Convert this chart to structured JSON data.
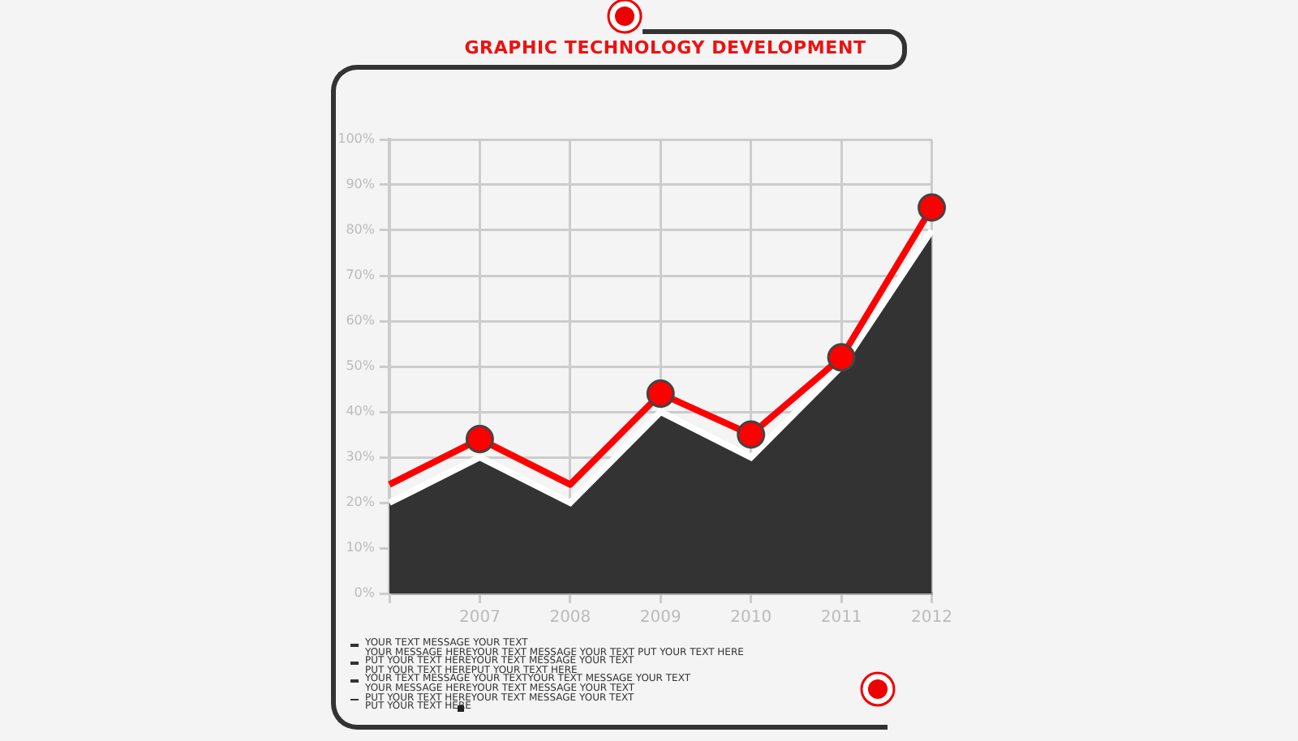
{
  "chart_data": {
    "type": "line",
    "title": "GRAPHIC TECHNOLOGY DEVELOPMENT",
    "categories": [
      null,
      "2007",
      "2008",
      "2009",
      "2010",
      "2011",
      "2012"
    ],
    "series": [
      {
        "type": "area",
        "color": "#333333",
        "values": [
          20,
          30,
          20,
          40,
          30,
          50,
          80
        ]
      },
      {
        "type": "line",
        "color": "#ff0000",
        "marker": "none",
        "values": [
          24,
          34,
          24,
          44,
          35,
          52,
          85
        ]
      },
      {
        "type": "scatter",
        "color": "#ff0000",
        "marker": "circle",
        "values": [
          null,
          34,
          null,
          44,
          35,
          52,
          85
        ]
      }
    ],
    "ylim": [
      0,
      100
    ],
    "yticks": [
      {
        "value": 0,
        "label": "0%"
      },
      {
        "value": 10,
        "label": "10%"
      },
      {
        "value": 20,
        "label": "20%"
      },
      {
        "value": 30,
        "label": "30%"
      },
      {
        "value": 40,
        "label": "40%"
      },
      {
        "value": 50,
        "label": "50%"
      },
      {
        "value": 60,
        "label": "60%"
      },
      {
        "value": 70,
        "label": "70%"
      },
      {
        "value": 80,
        "label": "80%"
      },
      {
        "value": 90,
        "label": "90%"
      },
      {
        "value": 100,
        "label": "100%"
      }
    ],
    "grid": true,
    "legend": false,
    "annotations": [
      "YOUR TEXT MESSAGE YOUR TEXT\nYOUR MESSAGE HEREYOUR TEXT MESSAGE YOUR TEXT PUT YOUR TEXT HERE",
      "PUT YOUR TEXT HEREYOUR TEXT MESSAGE YOUR TEXT\nPUT YOUR TEXT HEREPUT YOUR TEXT HERE",
      "YOUR TEXT MESSAGE YOUR TEXTYOUR TEXT MESSAGE YOUR TEXT\nYOUR MESSAGE HEREYOUR TEXT MESSAGE YOUR TEXT",
      "PUT YOUR TEXT HEREYOUR TEXT MESSAGE YOUR TEXT\nPUT YOUR TEXT HERE"
    ]
  }
}
